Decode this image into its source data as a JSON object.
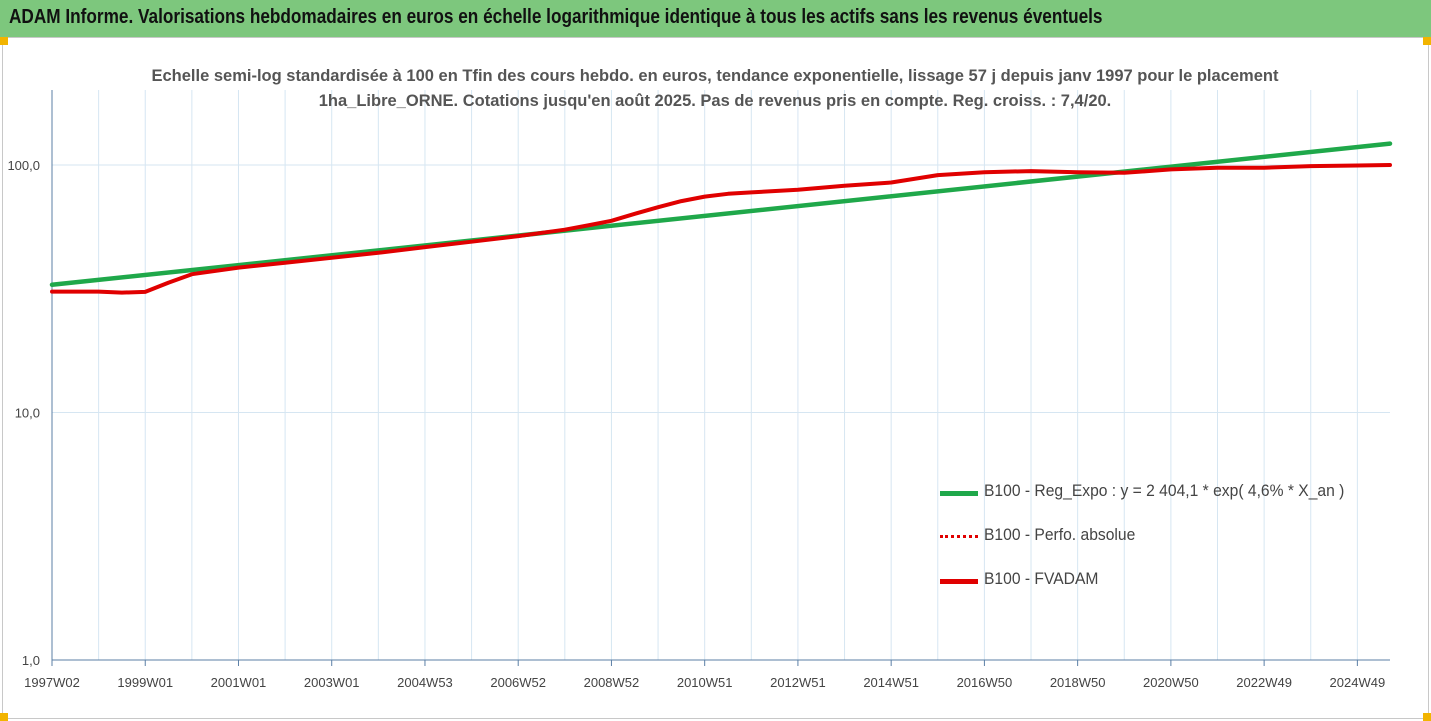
{
  "banner": {
    "title": "ADAM Informe. Valorisations hebdomadaires en euros en échelle logarithmique identique à tous les actifs sans les revenus éventuels"
  },
  "colors": {
    "banner_bg": "#7dc77d",
    "regression": "#1fa84a",
    "perf_absolue": "#e00000",
    "fvadam": "#e00000",
    "grid": "#d6e6f2",
    "handles": "#f2b400"
  },
  "chart_data": {
    "type": "line",
    "title": "Echelle semi-log standardisée à 100 en Tfin des cours hebdo. en euros, tendance exponentielle, lissage 57 j depuis janv 1997 pour le placement 1ha_Libre_ORNE. Cotations jusqu'en août 2025. Pas de revenus pris en compte. Reg. croiss. : 7,4/20.",
    "yscale": "log",
    "ylim": [
      1,
      200
    ],
    "yticks": [
      {
        "value": 1,
        "label": "1,0"
      },
      {
        "value": 10,
        "label": "10,0"
      },
      {
        "value": 100,
        "label": "100,0"
      }
    ],
    "xlim": [
      1997.0,
      2025.7
    ],
    "xticks": [
      {
        "value": 1997.0,
        "label": "1997W02"
      },
      {
        "value": 1999.0,
        "label": "1999W01"
      },
      {
        "value": 2001.0,
        "label": "2001W01"
      },
      {
        "value": 2003.0,
        "label": "2003W01"
      },
      {
        "value": 2005.0,
        "label": "2004W53"
      },
      {
        "value": 2007.0,
        "label": "2006W52"
      },
      {
        "value": 2009.0,
        "label": "2008W52"
      },
      {
        "value": 2011.0,
        "label": "2010W51"
      },
      {
        "value": 2013.0,
        "label": "2012W51"
      },
      {
        "value": 2015.0,
        "label": "2014W51"
      },
      {
        "value": 2017.0,
        "label": "2016W50"
      },
      {
        "value": 2019.0,
        "label": "2018W50"
      },
      {
        "value": 2021.0,
        "label": "2020W50"
      },
      {
        "value": 2023.0,
        "label": "2022W49"
      },
      {
        "value": 2025.0,
        "label": "2024W49"
      }
    ],
    "grid": true,
    "legend_position": "bottom-right",
    "series": [
      {
        "name": "B100 - Reg_Expo : y = 2 404,1 * exp( 4,6% *  X_an )",
        "style": "solid",
        "x": [
          1997.0,
          2025.7
        ],
        "y": [
          32.8,
          122
        ]
      },
      {
        "name": "B100 - Perfo. absolue",
        "style": "dotted",
        "x": [
          1997.0,
          1998.0,
          1998.5,
          1999.0,
          1999.5,
          2000.0,
          2001.0,
          2002.0,
          2003.0,
          2004.0,
          2005.0,
          2006.0,
          2007.0,
          2008.0,
          2008.5,
          2009.0,
          2009.5,
          2010.0,
          2010.5,
          2011.0,
          2011.5,
          2012.0,
          2013.0,
          2014.0,
          2015.0,
          2016.0,
          2017.0,
          2018.0,
          2019.0,
          2020.0,
          2020.5,
          2021.0,
          2022.0,
          2023.0,
          2024.0,
          2025.0,
          2025.7
        ],
        "y": [
          30.8,
          30.8,
          30.5,
          30.7,
          33.5,
          36.2,
          38.5,
          40.3,
          42.2,
          44.2,
          46.6,
          49.0,
          51.6,
          54.8,
          57.0,
          59.5,
          63.5,
          67.5,
          71.5,
          74.5,
          76.5,
          77.5,
          79.5,
          82.5,
          85.0,
          91.0,
          93.5,
          94.5,
          93.5,
          93.0,
          94.5,
          96.0,
          97.5,
          97.5,
          99.0,
          99.5,
          100
        ]
      },
      {
        "name": "B100 - FVADAM",
        "style": "solid",
        "x": [
          1997.0,
          1998.0,
          1998.5,
          1999.0,
          1999.5,
          2000.0,
          2001.0,
          2002.0,
          2003.0,
          2004.0,
          2005.0,
          2006.0,
          2007.0,
          2008.0,
          2008.5,
          2009.0,
          2009.5,
          2010.0,
          2010.5,
          2011.0,
          2011.5,
          2012.0,
          2013.0,
          2014.0,
          2015.0,
          2016.0,
          2017.0,
          2018.0,
          2019.0,
          2020.0,
          2020.5,
          2021.0,
          2022.0,
          2023.0,
          2024.0,
          2025.0,
          2025.7
        ],
        "y": [
          30.8,
          30.8,
          30.5,
          30.7,
          33.5,
          36.2,
          38.5,
          40.3,
          42.2,
          44.2,
          46.6,
          49.0,
          51.6,
          54.8,
          57.0,
          59.5,
          63.5,
          67.5,
          71.5,
          74.5,
          76.5,
          77.5,
          79.5,
          82.5,
          85.0,
          91.0,
          93.5,
          94.5,
          93.5,
          93.0,
          94.5,
          96.0,
          97.5,
          97.5,
          99.0,
          99.5,
          100
        ]
      }
    ]
  }
}
